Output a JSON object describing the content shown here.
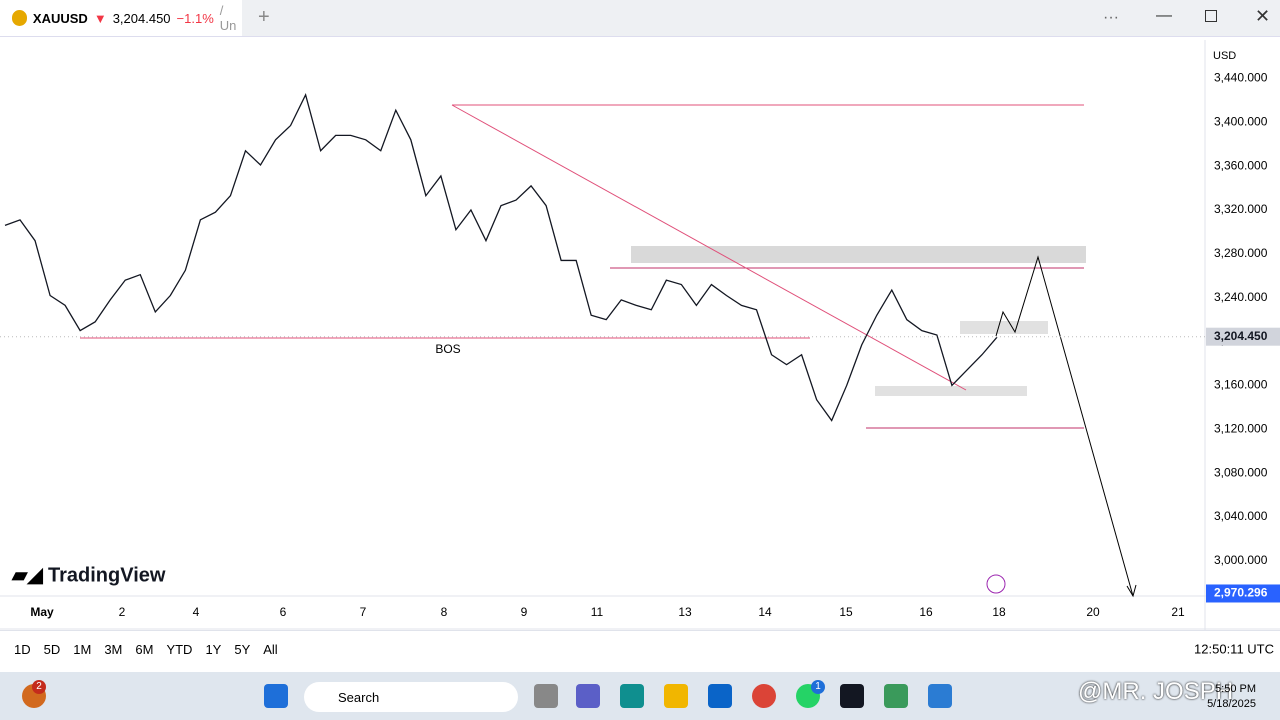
{
  "header": {
    "symbol": "XAUUSD",
    "price": "3,204.450",
    "change": "−1.1%",
    "extra": "/ Un"
  },
  "chart_data": {
    "type": "line",
    "color": "#131722",
    "grid": false,
    "values": [
      3306,
      3311,
      3292,
      3242,
      3233,
      3210,
      3218,
      3238,
      3256,
      3261,
      3227,
      3242,
      3265,
      3311,
      3318,
      3333,
      3374,
      3361,
      3384,
      3397,
      3425,
      3374,
      3388,
      3388,
      3384,
      3374,
      3411,
      3384,
      3333,
      3351,
      3302,
      3320,
      3292,
      3324,
      3329,
      3342,
      3324,
      3274,
      3274,
      3224,
      3220,
      3238,
      3233,
      3229,
      3256,
      3252,
      3233,
      3252,
      3242,
      3233,
      3229,
      3188,
      3179,
      3188,
      3147,
      3128,
      3160,
      3197,
      3224,
      3247,
      3220,
      3210,
      3206,
      3160,
      3174,
      3188,
      3204
    ],
    "ylim": [
      2968,
      3475
    ],
    "yticks": [
      {
        "value": 3000,
        "label": "3,000.000"
      },
      {
        "value": 3040,
        "label": "3,040.000"
      },
      {
        "value": 3080,
        "label": "3,080.000"
      },
      {
        "value": 3120,
        "label": "3,120.000"
      },
      {
        "value": 3160,
        "label": "3,160.000"
      },
      {
        "value": 3200,
        "label": "3,200.000"
      },
      {
        "value": 3240,
        "label": "3,240.000"
      },
      {
        "value": 3280,
        "label": "3,280.000"
      },
      {
        "value": 3320,
        "label": "3,320.000"
      },
      {
        "value": 3360,
        "label": "3,360.000"
      },
      {
        "value": 3400,
        "label": "3,400.000"
      },
      {
        "value": 3440,
        "label": "3,440.000"
      }
    ],
    "x_labels": [
      "May",
      "2",
      "4",
      "6",
      "7",
      "8",
      "9",
      "11",
      "13",
      "14",
      "15",
      "16",
      "18",
      "20",
      "21"
    ],
    "price_label": {
      "value": 3204.45,
      "label": "3,204.450"
    },
    "target_label": {
      "value": 2970.296,
      "label": "2,970.296"
    },
    "annotation": "BOS",
    "currency": "USD",
    "watermark": "TradingView"
  },
  "toolbar": {
    "ranges": [
      "1D",
      "5D",
      "1M",
      "3M",
      "6M",
      "YTD",
      "1Y",
      "5Y",
      "All"
    ],
    "clock": "12:50:11 UTC"
  },
  "taskbar": {
    "search": "Search",
    "time": "5:50 PM",
    "date": "5/18/2025",
    "badges": [
      "2",
      "1"
    ],
    "overlay": "@MR. JOSPH"
  }
}
